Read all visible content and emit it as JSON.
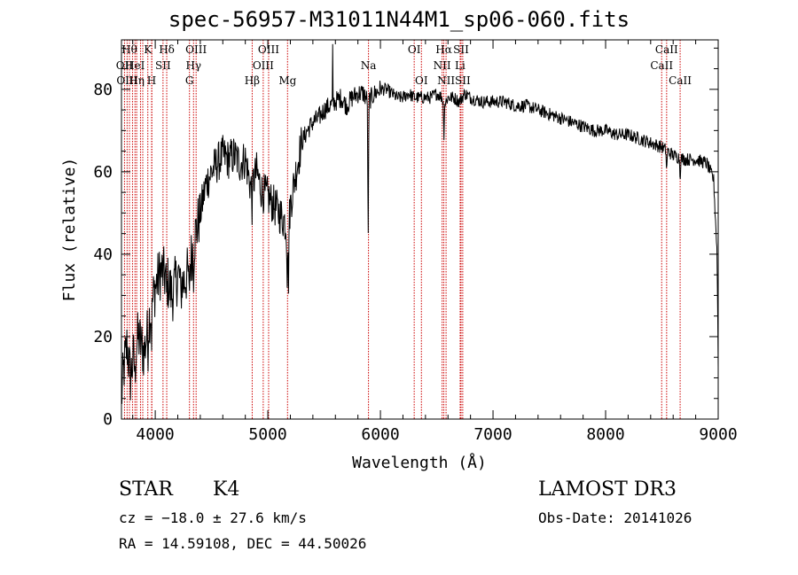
{
  "chart_data": {
    "type": "line",
    "title": "spec-56957-M31011N44M1_sp06-060.fits",
    "xlabel": "Wavelength (Å)",
    "ylabel": "Flux (relative)",
    "xlim": [
      3700,
      9000
    ],
    "ylim": [
      0,
      92
    ],
    "x_ticks": [
      4000,
      5000,
      6000,
      7000,
      8000,
      9000
    ],
    "y_ticks": [
      0,
      20,
      40,
      60,
      80
    ],
    "x_tick_labels": [
      "4000",
      "5000",
      "6000",
      "7000",
      "8000",
      "9000"
    ],
    "y_tick_labels": [
      "0",
      "20",
      "40",
      "60",
      "80"
    ],
    "spectrum_anchor_points": {
      "wavelength": [
        3700,
        3720,
        3750,
        3780,
        3800,
        3850,
        3900,
        3950,
        4000,
        4050,
        4100,
        4150,
        4200,
        4250,
        4300,
        4350,
        4400,
        4450,
        4500,
        4550,
        4600,
        4650,
        4700,
        4750,
        4800,
        4850,
        4900,
        4950,
        5000,
        5050,
        5100,
        5150,
        5180,
        5200,
        5250,
        5300,
        5350,
        5400,
        5450,
        5500,
        5550,
        5600,
        5650,
        5700,
        5750,
        5800,
        5850,
        5890,
        5950,
        6000,
        6050,
        6100,
        6150,
        6200,
        6250,
        6300,
        6350,
        6400,
        6450,
        6500,
        6550,
        6563,
        6600,
        6650,
        6700,
        6750,
        6800,
        6900,
        7000,
        7100,
        7200,
        7300,
        7400,
        7500,
        7600,
        7700,
        7800,
        7900,
        8000,
        8100,
        8200,
        8300,
        8400,
        8500,
        8600,
        8700,
        8800,
        8900,
        8960,
        8990,
        9000
      ],
      "flux": [
        5,
        12,
        18,
        10,
        14,
        20,
        16,
        25,
        32,
        36,
        34,
        30,
        35,
        33,
        36,
        44,
        50,
        57,
        60,
        62,
        64,
        63,
        64,
        62,
        63,
        56,
        60,
        55,
        54,
        52,
        50,
        48,
        45,
        52,
        60,
        67,
        70,
        72,
        73,
        75,
        76,
        77,
        78,
        76,
        78,
        79,
        79,
        77,
        79,
        80,
        80,
        79,
        78,
        78,
        79,
        78,
        78,
        78,
        78,
        79,
        78,
        76,
        78,
        78,
        77,
        79,
        78,
        77,
        77,
        77,
        76,
        76,
        75,
        74,
        73,
        72,
        71,
        70,
        70,
        69,
        69,
        68,
        67,
        66,
        64,
        63,
        63,
        62,
        58,
        40,
        13
      ]
    },
    "absorption_lines": [
      {
        "wavelength": 3820,
        "depth": 8
      },
      {
        "wavelength": 3934,
        "depth": 6
      },
      {
        "wavelength": 3968,
        "depth": 7
      },
      {
        "wavelength": 4101,
        "depth": 5
      },
      {
        "wavelength": 4227,
        "depth": 6
      },
      {
        "wavelength": 4300,
        "depth": 7
      },
      {
        "wavelength": 4340,
        "depth": 6
      },
      {
        "wavelength": 4861,
        "depth": 6
      },
      {
        "wavelength": 5172,
        "depth": 10
      },
      {
        "wavelength": 5183,
        "depth": 14
      },
      {
        "wavelength": 5891,
        "depth": 36
      },
      {
        "wavelength": 6563,
        "depth": 8
      },
      {
        "wavelength": 8542,
        "depth": 6
      },
      {
        "wavelength": 8662,
        "depth": 5
      }
    ],
    "emission_spikes": [
      {
        "wavelength": 5577,
        "peak": 91
      }
    ],
    "line_markers": [
      {
        "wavelength": 3727,
        "label": "OII",
        "row": 1
      },
      {
        "wavelength": 3750,
        "label": "OIII",
        "row": 2
      },
      {
        "wavelength": 3771,
        "label": "Hθ",
        "row": 0
      },
      {
        "wavelength": 3798,
        "label": "",
        "row": 0
      },
      {
        "wavelength": 3820,
        "label": "HeI",
        "row": 1
      },
      {
        "wavelength": 3835,
        "label": "Hη",
        "row": 2
      },
      {
        "wavelength": 3869,
        "label": "",
        "row": 0
      },
      {
        "wavelength": 3889,
        "label": "",
        "row": 0
      },
      {
        "wavelength": 3934,
        "label": "K",
        "row": 0
      },
      {
        "wavelength": 3968,
        "label": "H",
        "row": 2
      },
      {
        "wavelength": 3970,
        "label": "",
        "row": 0
      },
      {
        "wavelength": 4069,
        "label": "SII",
        "row": 1
      },
      {
        "wavelength": 4102,
        "label": "Hδ",
        "row": 0
      },
      {
        "wavelength": 4304,
        "label": "G",
        "row": 2
      },
      {
        "wavelength": 4340,
        "label": "Hγ",
        "row": 1
      },
      {
        "wavelength": 4363,
        "label": "OIII",
        "row": 0
      },
      {
        "wavelength": 4861,
        "label": "Hβ",
        "row": 2
      },
      {
        "wavelength": 4959,
        "label": "OIII",
        "row": 1
      },
      {
        "wavelength": 5007,
        "label": "OIII",
        "row": 0
      },
      {
        "wavelength": 5175,
        "label": "Mg",
        "row": 2
      },
      {
        "wavelength": 5894,
        "label": "Na",
        "row": 1
      },
      {
        "wavelength": 6300,
        "label": "OI",
        "row": 0
      },
      {
        "wavelength": 6364,
        "label": "OI",
        "row": 2
      },
      {
        "wavelength": 6548,
        "label": "NII",
        "row": 1
      },
      {
        "wavelength": 6563,
        "label": "Hα",
        "row": 0
      },
      {
        "wavelength": 6583,
        "label": "NII",
        "row": 2
      },
      {
        "wavelength": 6708,
        "label": "Li",
        "row": 1
      },
      {
        "wavelength": 6716,
        "label": "SII",
        "row": 0
      },
      {
        "wavelength": 6731,
        "label": "SII",
        "row": 2
      },
      {
        "wavelength": 8498,
        "label": "CaII",
        "row": 1
      },
      {
        "wavelength": 8542,
        "label": "CaII",
        "row": 0
      },
      {
        "wavelength": 8662,
        "label": "CaII",
        "row": 2
      }
    ],
    "marker_color": "#cc0000",
    "line_color": "#000000"
  },
  "info": {
    "object_class": "STAR",
    "subclass": "K4",
    "survey": "LAMOST DR3",
    "redshift": "cz = −18.0 ± 27.6 km/s",
    "obs_date": "Obs-Date: 20141026",
    "coords": "RA =  14.59108, DEC =  44.50026"
  }
}
